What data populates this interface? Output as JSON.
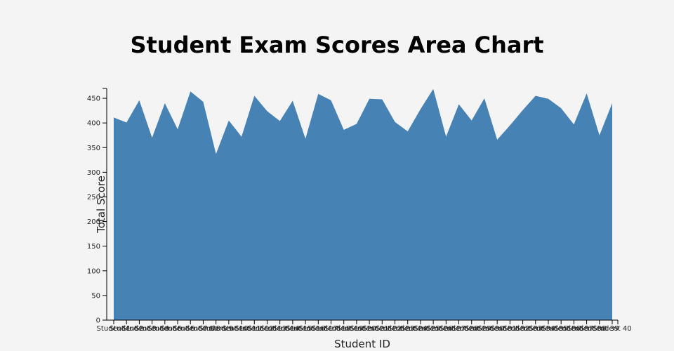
{
  "chart_data": {
    "type": "area",
    "title": "Student Exam Scores Area Chart",
    "xlabel": "Student ID",
    "ylabel": "Total Score",
    "ylim": [
      0,
      470
    ],
    "yticks": [
      0,
      50,
      100,
      150,
      200,
      250,
      300,
      350,
      400,
      450
    ],
    "grid": false,
    "color": "#4682b4",
    "categories": [
      "Student 1",
      "Student 2",
      "Student 3",
      "Student 4",
      "Student 5",
      "Student 6",
      "Student 7",
      "Student 8",
      "Student 9",
      "Student 10",
      "Student 11",
      "Student 12",
      "Student 13",
      "Student 14",
      "Student 15",
      "Student 16",
      "Student 17",
      "Student 18",
      "Student 19",
      "Student 20",
      "Student 21",
      "Student 22",
      "Student 23",
      "Student 24",
      "Student 25",
      "Student 26",
      "Student 27",
      "Student 28",
      "Student 29",
      "Student 30",
      "Student 31",
      "Student 32",
      "Student 33",
      "Student 34",
      "Student 35",
      "Student 36",
      "Student 37",
      "Student 38",
      "Student 39",
      "Student 40"
    ],
    "values": [
      411,
      401,
      446,
      370,
      440,
      387,
      464,
      443,
      337,
      405,
      372,
      455,
      424,
      404,
      445,
      368,
      459,
      446,
      386,
      398,
      449,
      448,
      402,
      383,
      428,
      469,
      372,
      438,
      405,
      450,
      366,
      395,
      426,
      455,
      449,
      430,
      397,
      460,
      375,
      440
    ]
  }
}
